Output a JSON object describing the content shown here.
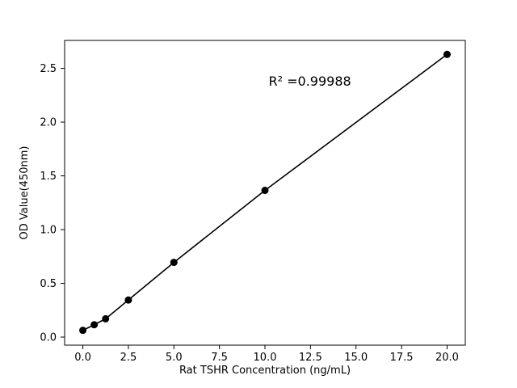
{
  "chart_data": {
    "type": "scatter",
    "title": "",
    "xlabel": "Rat TSHR Concentration (ng/mL)",
    "ylabel": "OD Value(450nm)",
    "x": [
      0,
      0.625,
      1.25,
      2.5,
      5,
      10,
      20
    ],
    "y": [
      0.063,
      0.115,
      0.17,
      0.345,
      0.695,
      1.365,
      2.63
    ],
    "line_through_points": true,
    "annotation": {
      "text": "R² =0.99988",
      "x": 10.2,
      "y": 2.38
    },
    "xlim": [
      -1,
      21
    ],
    "ylim": [
      -0.075,
      2.76
    ],
    "xticks": [
      0,
      2.5,
      5,
      7.5,
      10,
      12.5,
      15,
      17.5,
      20
    ],
    "xtick_labels": [
      "0.0",
      "2.5",
      "5.0",
      "7.5",
      "10.0",
      "12.5",
      "15.0",
      "17.5",
      "20.0"
    ],
    "yticks": [
      0,
      0.5,
      1,
      1.5,
      2,
      2.5
    ],
    "ytick_labels": [
      "0.0",
      "0.5",
      "1.0",
      "1.5",
      "2.0",
      "2.5"
    ],
    "grid": false,
    "legend": null,
    "marker_color": "#000000",
    "line_color": "#000000",
    "spine_color": "#000000",
    "background_color": "#ffffff",
    "marker_radius_px": 4.5
  }
}
